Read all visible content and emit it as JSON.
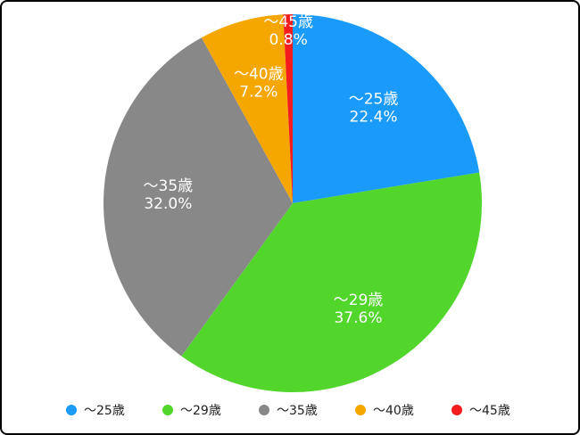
{
  "chart_data": {
    "type": "pie",
    "categories": [
      "〜25歳",
      "〜29歳",
      "〜35歳",
      "〜40歳",
      "〜45歳"
    ],
    "values": [
      22.4,
      37.6,
      32.0,
      7.2,
      0.8
    ],
    "value_labels": [
      "22.4%",
      "37.6%",
      "32.0%",
      "7.2%",
      "0.8%"
    ],
    "colors": [
      "#1a9bfc",
      "#52d62c",
      "#888888",
      "#f5a700",
      "#f41c1c"
    ],
    "legend": "bottom"
  }
}
